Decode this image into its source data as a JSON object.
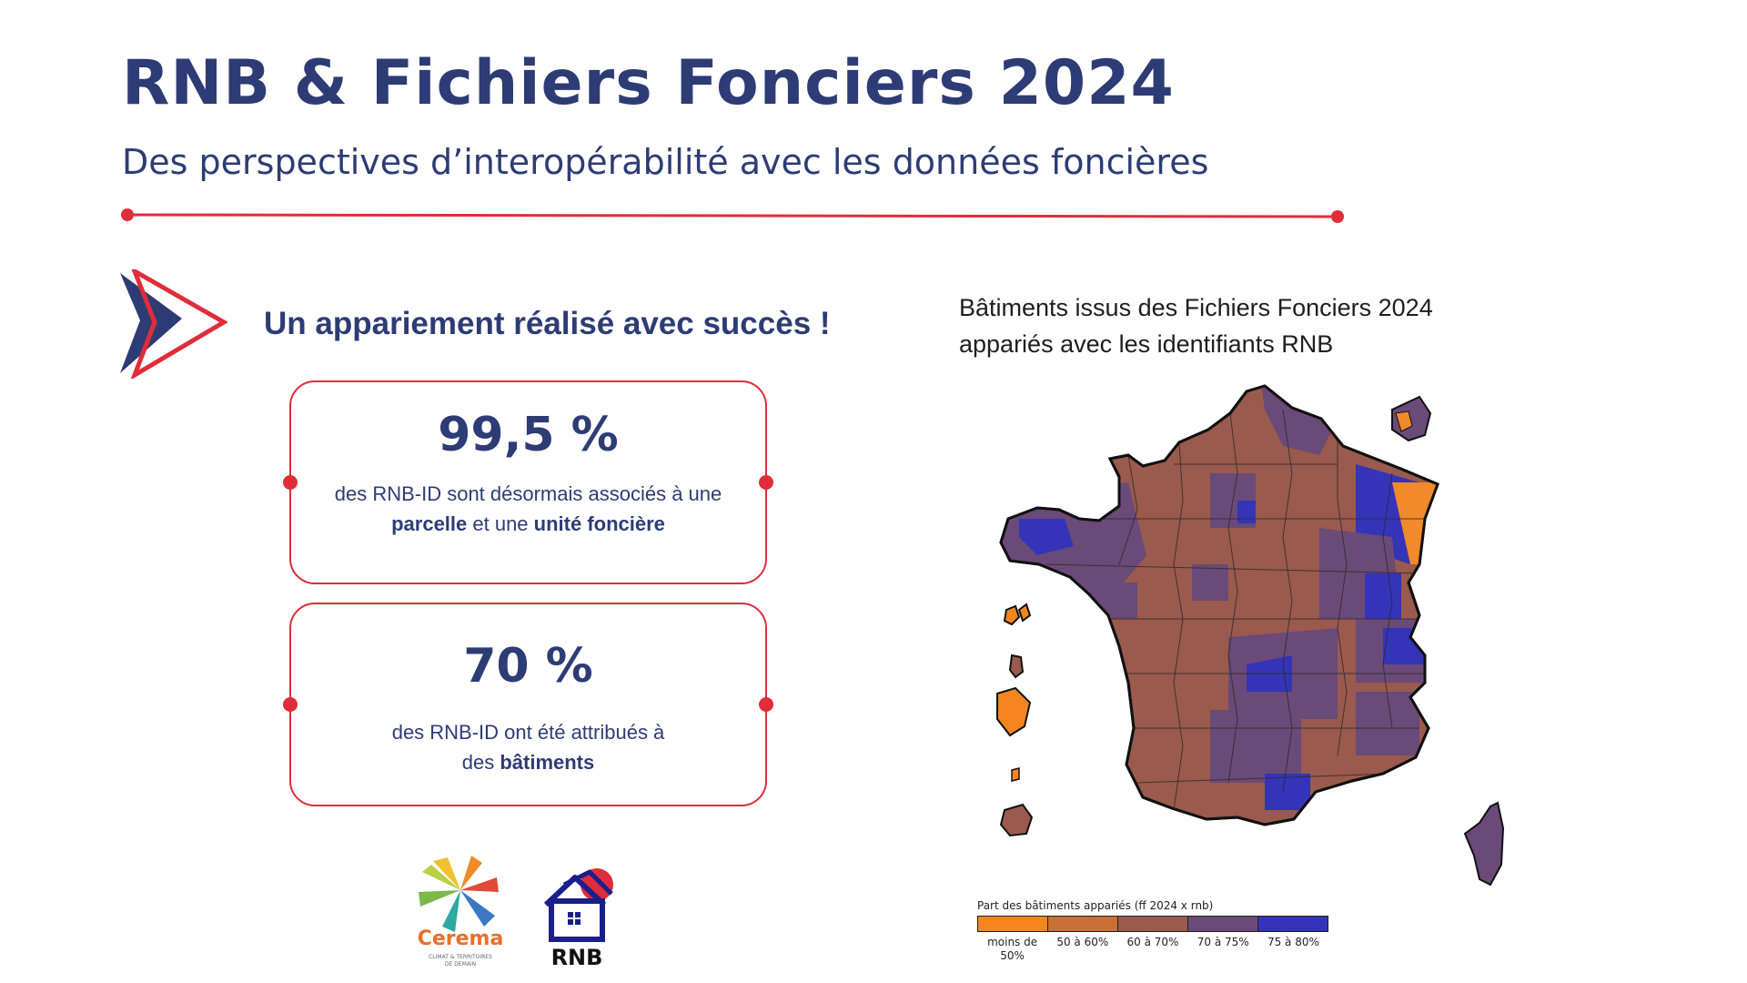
{
  "header": {
    "title": "RNB & Fichiers Fonciers 2024",
    "subtitle": "Des perspectives d’interopérabilité avec les données foncières"
  },
  "section": {
    "heading": "Un appariement réalisé avec succès !"
  },
  "stats": [
    {
      "value": "99,5 %",
      "text_before": "des RNB-ID sont désormais associés à une",
      "bold_1": "parcelle",
      "text_mid": " et une ",
      "bold_2": "unité foncière"
    },
    {
      "value": "70 %",
      "text_before": "des RNB-ID ont été attribués à",
      "text_mid": "des ",
      "bold_1": "bâtiments"
    }
  ],
  "logos": {
    "cerema_name": "Cerema",
    "cerema_tagline_1": "CLIMAT & TERRITOIRES",
    "cerema_tagline_2": "DE DEMAIN",
    "rnb_name": "RNB"
  },
  "map": {
    "title_line1": "Bâtiments issus des Fichiers Fonciers 2024",
    "title_line2": "appariés avec les identifiants RNB"
  },
  "legend": {
    "title": "Part des bâtiments appariés (ff 2024 x rnb)",
    "classes": [
      {
        "label_1": "moins de",
        "label_2": "50%",
        "color": "#f5861f"
      },
      {
        "label_1": "50 à 60%",
        "label_2": "",
        "color": "#c87038"
      },
      {
        "label_1": "60 à 70%",
        "label_2": "",
        "color": "#9a5a4d"
      },
      {
        "label_1": "70 à 75%",
        "label_2": "",
        "color": "#6a4a78"
      },
      {
        "label_1": "75 à 80%",
        "label_2": "",
        "color": "#3434b8"
      }
    ]
  },
  "colors": {
    "navy": "#2e3c75",
    "accent_red": "#e02d3a"
  }
}
